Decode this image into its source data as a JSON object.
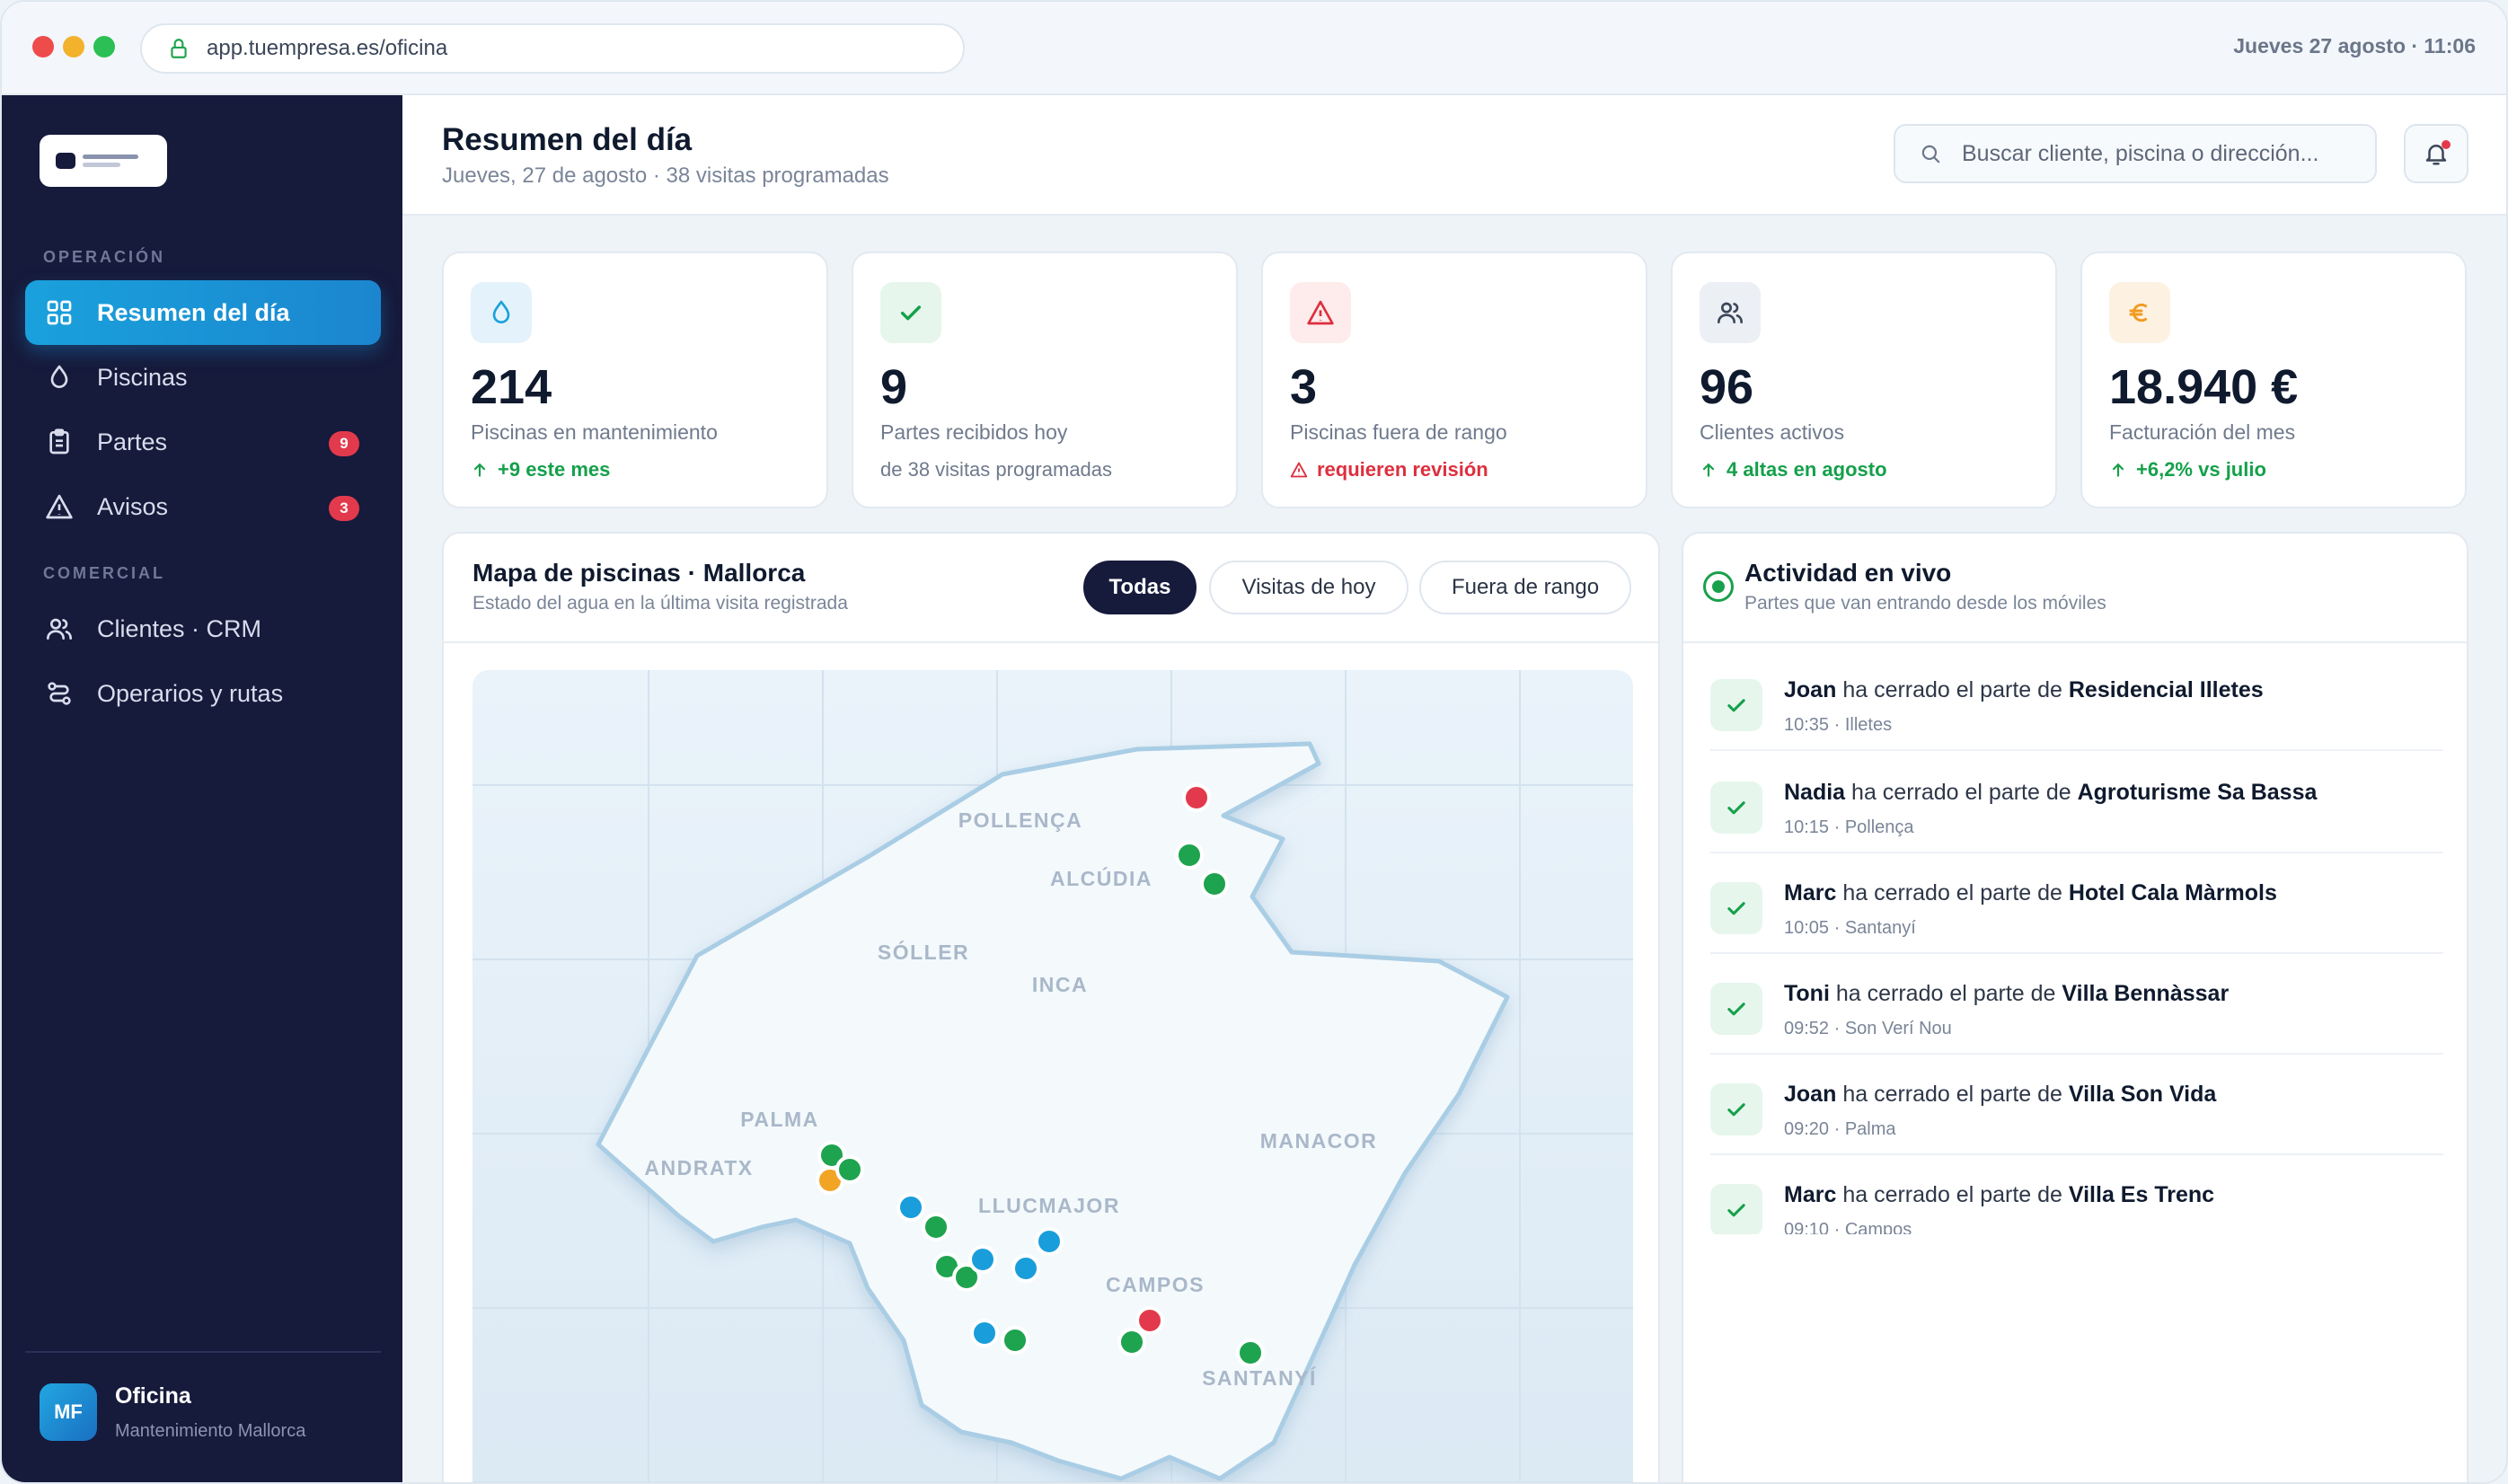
{
  "browser": {
    "url": "app.tuempresa.es/oficina",
    "clock": "Jueves 27 agosto · 11:06"
  },
  "sidebar": {
    "sections": [
      {
        "label": "OPERACIÓN"
      },
      {
        "label": "COMERCIAL"
      }
    ],
    "items": [
      {
        "label": "Resumen del día",
        "icon": "grid-icon",
        "active": true
      },
      {
        "label": "Piscinas",
        "icon": "drop-icon"
      },
      {
        "label": "Partes",
        "icon": "clipboard-icon",
        "badge": "9"
      },
      {
        "label": "Avisos",
        "icon": "warning-icon",
        "badge": "3"
      },
      {
        "label": "Clientes · CRM",
        "icon": "users-icon"
      },
      {
        "label": "Operarios y rutas",
        "icon": "route-icon"
      }
    ],
    "footer": {
      "initials": "MF",
      "name": "Oficina",
      "subtitle": "Mantenimiento Mallorca"
    }
  },
  "header": {
    "title": "Resumen del día",
    "subtitle": "Jueves, 27 de agosto · 38 visitas programadas",
    "search_placeholder": "Buscar cliente, piscina o dirección..."
  },
  "kpis": [
    {
      "icon": "drop-icon",
      "value": "214",
      "label": "Piscinas en mantenimiento",
      "note": "+9 este mes",
      "note_kind": "up",
      "color": "#1aa1dc"
    },
    {
      "icon": "check-icon",
      "value": "9",
      "label": "Partes recibidos hoy",
      "note": "de 38 visitas programadas",
      "note_kind": "plain",
      "color": "#15a04b"
    },
    {
      "icon": "warning-icon",
      "value": "3",
      "label": "Piscinas fuera de rango",
      "note": "requieren revisión",
      "note_kind": "alert",
      "color": "#dd2f3e"
    },
    {
      "icon": "users-icon",
      "value": "96",
      "label": "Clientes activos",
      "note": "4 altas en agosto",
      "note_kind": "up",
      "color": "#3b4658"
    },
    {
      "icon": "euro-icon",
      "value": "18.940 €",
      "label": "Facturación del mes",
      "note": "+6,2% vs julio",
      "note_kind": "up",
      "color": "#f29a1f"
    }
  ],
  "map": {
    "title": "Mapa de piscinas · Mallorca",
    "subtitle": "Estado del agua en la última visita registrada",
    "filters": [
      "Todas",
      "Visitas de hoy",
      "Fuera de rango"
    ],
    "active_filter": "Todas",
    "towns": [
      "POLLENÇA",
      "ALCÚDIA",
      "SÓLLER",
      "INCA",
      "PALMA",
      "ANDRATX",
      "LLUCMAJOR",
      "MANACOR",
      "CAMPOS",
      "SANTANYÍ"
    ],
    "status_colors": {
      "ok": "#1ea34f",
      "today": "#1a9ddb",
      "alert": "#e23a4c",
      "warning": "#f2a425"
    }
  },
  "activity": {
    "title": "Actividad en vivo",
    "subtitle": "Partes que van entrando desde los móviles",
    "verb": "ha cerrado el parte de",
    "items": [
      {
        "who": "Joan",
        "what": "Residencial Illetes",
        "meta": "10:35 · Illetes"
      },
      {
        "who": "Nadia",
        "what": "Agroturisme Sa Bassa",
        "meta": "10:15 · Pollença"
      },
      {
        "who": "Marc",
        "what": "Hotel Cala Màrmols",
        "meta": "10:05 · Santanyí"
      },
      {
        "who": "Toni",
        "what": "Villa Bennàssar",
        "meta": "09:52 · Son Verí Nou"
      },
      {
        "who": "Joan",
        "what": "Villa Son Vida",
        "meta": "09:20 · Palma"
      },
      {
        "who": "Marc",
        "what": "Villa Es Trenc",
        "meta": "09:10 · Campos"
      }
    ]
  }
}
